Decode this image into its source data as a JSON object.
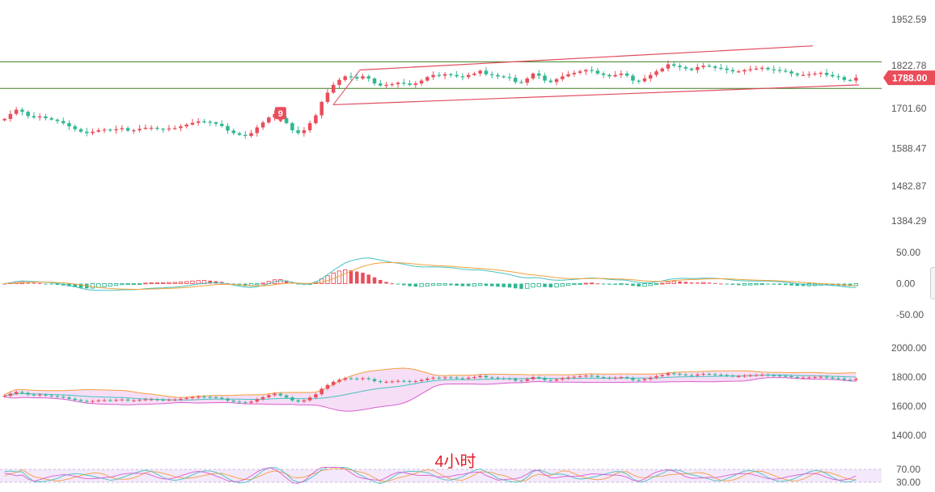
{
  "chart_data": [
    {
      "type": "candlestick",
      "panel": "price",
      "interval_label": "4小时",
      "y_ticks": [
        1952.59,
        1822.78,
        1701.6,
        1588.47,
        1482.87,
        1384.29
      ],
      "ylim": [
        1384.29,
        1952.59
      ],
      "last_price": "1788.00",
      "marker_label": "9",
      "horizontal_lines": [
        1833,
        1758
      ],
      "channel": {
        "upper": [
          [
            445,
            1810
          ],
          [
            1005,
            1878
          ]
        ],
        "lower": [
          [
            412,
            1712
          ],
          [
            1062,
            1768
          ]
        ]
      },
      "closes": [
        1672,
        1686,
        1698,
        1692,
        1680,
        1676,
        1679,
        1674,
        1670,
        1666,
        1660,
        1651,
        1643,
        1636,
        1632,
        1636,
        1640,
        1642,
        1640,
        1643,
        1646,
        1639,
        1640,
        1644,
        1647,
        1647,
        1644,
        1643,
        1645,
        1646,
        1651,
        1656,
        1661,
        1665,
        1664,
        1662,
        1658,
        1652,
        1639,
        1632,
        1627,
        1624,
        1632,
        1648,
        1662,
        1676,
        1686,
        1674,
        1660,
        1640,
        1632,
        1640,
        1660,
        1682,
        1720,
        1746,
        1768,
        1782,
        1792,
        1790,
        1786,
        1792,
        1786,
        1772,
        1766,
        1768,
        1770,
        1774,
        1772,
        1768,
        1772,
        1780,
        1790,
        1796,
        1794,
        1798,
        1796,
        1792,
        1790,
        1796,
        1800,
        1808,
        1798,
        1796,
        1792,
        1790,
        1788,
        1776,
        1774,
        1786,
        1800,
        1794,
        1780,
        1776,
        1784,
        1792,
        1798,
        1802,
        1806,
        1810,
        1808,
        1800,
        1796,
        1792,
        1796,
        1800,
        1794,
        1780,
        1778,
        1786,
        1796,
        1806,
        1814,
        1826,
        1822,
        1818,
        1814,
        1810,
        1818,
        1822,
        1820,
        1816,
        1814,
        1810,
        1806,
        1806,
        1810,
        1812,
        1814,
        1816,
        1812,
        1810,
        1808,
        1806,
        1800,
        1796,
        1796,
        1798,
        1800,
        1802,
        1796,
        1792,
        1790,
        1782,
        1780,
        1788
      ],
      "price_text": "1788.00"
    },
    {
      "type": "histogram+line",
      "panel": "oscillator",
      "y_ticks": [
        50.0,
        0.0,
        -50.0
      ],
      "ylim": [
        -50,
        50
      ],
      "lines": [
        "fast",
        "slow"
      ]
    },
    {
      "type": "bands",
      "panel": "band-indicator",
      "y_ticks": [
        2000.0,
        1800.0,
        1600.0,
        1400.0
      ],
      "ylim": [
        1400,
        2000
      ]
    },
    {
      "type": "line",
      "panel": "rsi-like",
      "y_ticks": [
        70.0,
        30.0
      ],
      "ylim": [
        30,
        70
      ]
    }
  ],
  "colors": {
    "up": "#ea4d5a",
    "down": "#2fb792",
    "green_line": "#3f7f1f",
    "channel": "#e04b5e",
    "price_tag_bg": "#ea4d5a",
    "axis_text": "#555555",
    "band_fill": "#f4d8f5",
    "orange": "#f2a03d",
    "teal": "#46c2c0",
    "pink": "#d85fce"
  }
}
